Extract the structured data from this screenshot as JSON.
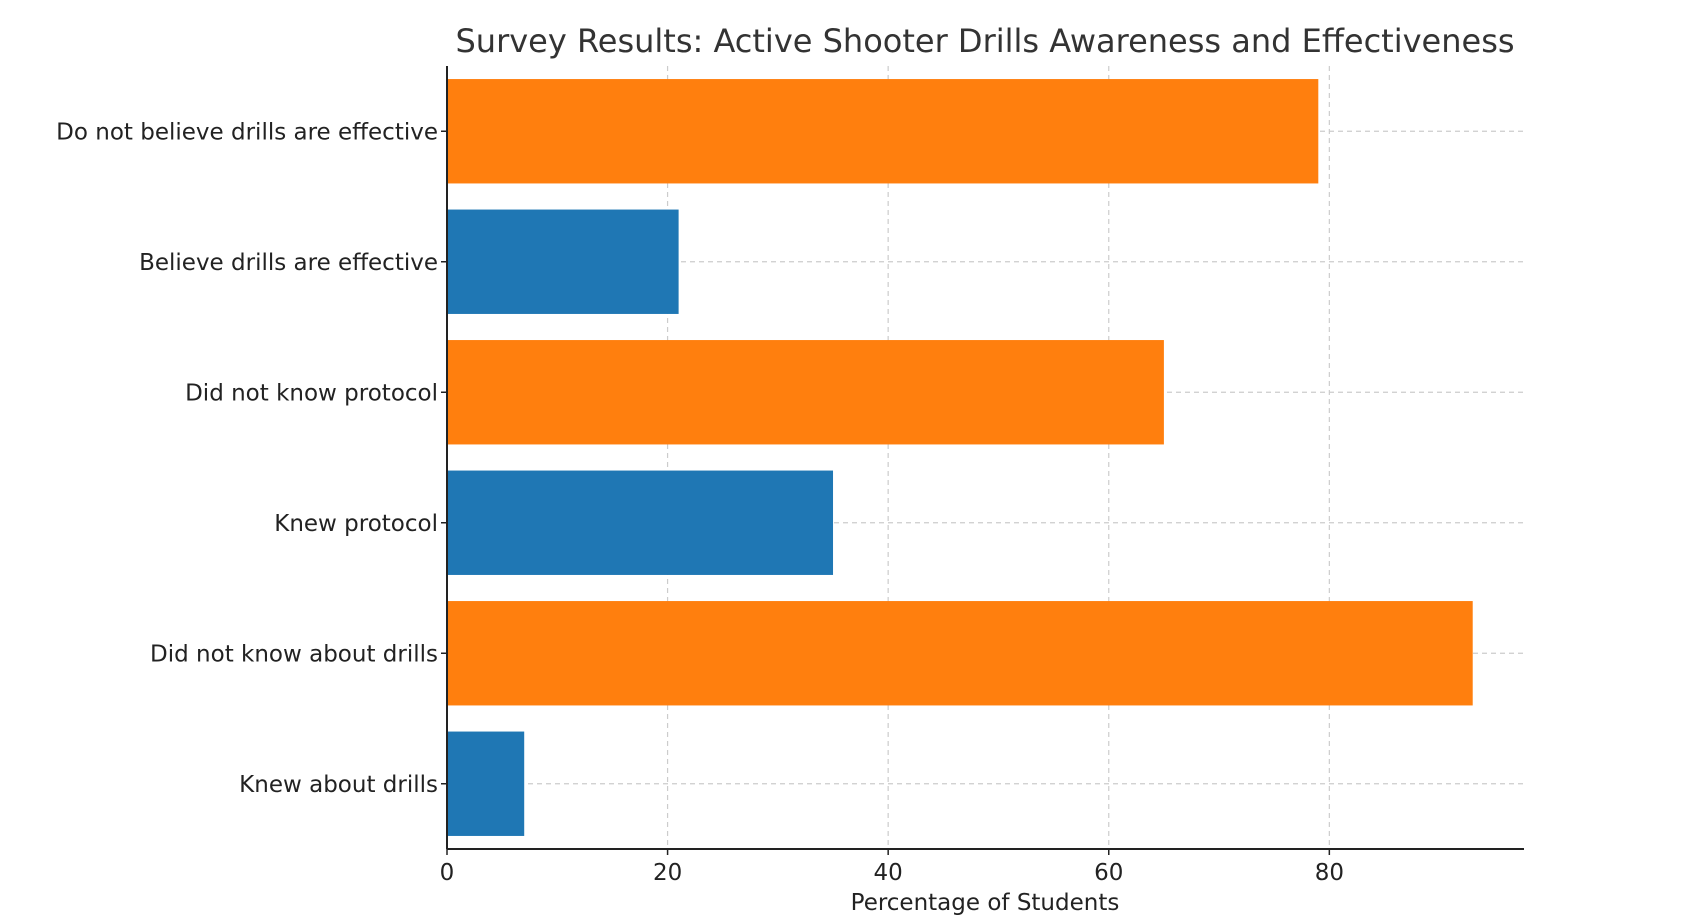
{
  "chart_data": {
    "type": "bar",
    "orientation": "horizontal",
    "title": "Survey Results: Active Shooter Drills Awareness and Effectiveness",
    "xlabel": "Percentage of Students",
    "ylabel": "",
    "xlim": [
      0,
      97.65
    ],
    "x_ticks": [
      0,
      20,
      40,
      60,
      80
    ],
    "grid": true,
    "categories": [
      "Knew about drills",
      "Did not know about drills",
      "Knew protocol",
      "Did not know protocol",
      "Believe drills are effective",
      "Do not believe drills are effective"
    ],
    "values": [
      7,
      93,
      35,
      65,
      21,
      79
    ],
    "bar_colors": [
      "#1f77b4",
      "#ff7f0e",
      "#1f77b4",
      "#ff7f0e",
      "#1f77b4",
      "#ff7f0e"
    ]
  }
}
